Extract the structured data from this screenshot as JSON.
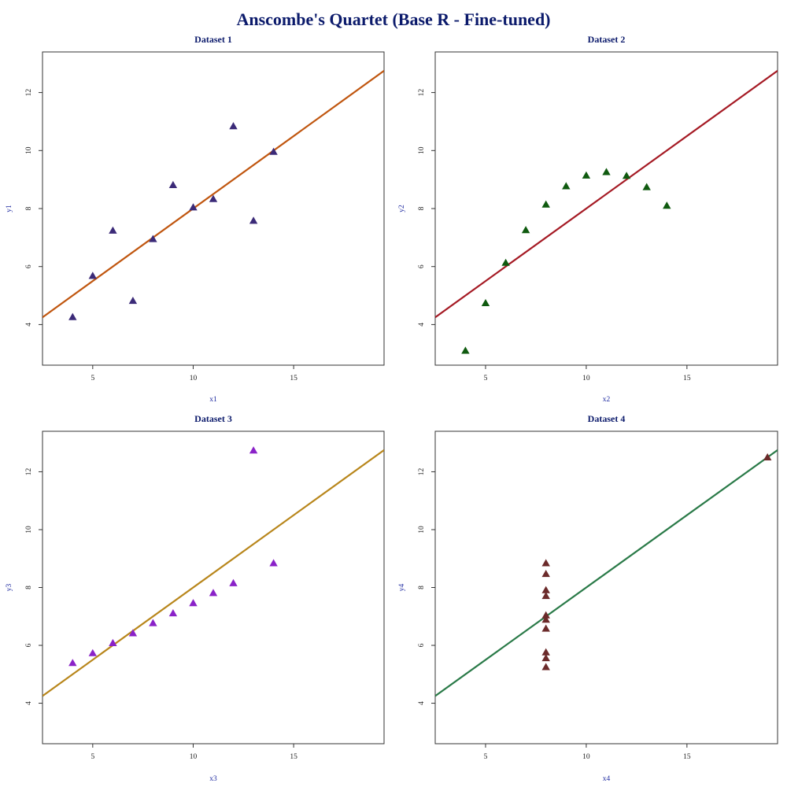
{
  "page": {
    "title": "Anscombe's Quartet (Base R - Fine-tuned)"
  },
  "chart_data": [
    {
      "type": "scatter",
      "title": "Dataset 1",
      "xlabel": "x1",
      "ylabel": "y1",
      "xlim": [
        2.5,
        19.5
      ],
      "ylim": [
        2.6,
        13.4
      ],
      "xticks": [
        "5",
        "10",
        "15"
      ],
      "yticks": [
        "4",
        "6",
        "8",
        "10",
        "12"
      ],
      "grid": false,
      "marker": "triangle",
      "point_color": "#3b2a78",
      "line_color": "#c0560f",
      "fit": {
        "intercept": 3.0,
        "slope": 0.5
      },
      "x": [
        10,
        8,
        13,
        9,
        11,
        14,
        6,
        4,
        12,
        7,
        5
      ],
      "y": [
        8.04,
        6.95,
        7.58,
        8.81,
        8.33,
        9.96,
        7.24,
        4.26,
        10.84,
        4.82,
        5.68
      ]
    },
    {
      "type": "scatter",
      "title": "Dataset 2",
      "xlabel": "x2",
      "ylabel": "y2",
      "xlim": [
        2.5,
        19.5
      ],
      "ylim": [
        2.6,
        13.4
      ],
      "xticks": [
        "5",
        "10",
        "15"
      ],
      "yticks": [
        "4",
        "6",
        "8",
        "10",
        "12"
      ],
      "grid": false,
      "marker": "triangle",
      "point_color": "#0f5a0f",
      "line_color": "#a51a24",
      "fit": {
        "intercept": 3.0,
        "slope": 0.5
      },
      "x": [
        10,
        8,
        13,
        9,
        11,
        14,
        6,
        4,
        12,
        7,
        5
      ],
      "y": [
        9.14,
        8.14,
        8.74,
        8.77,
        9.26,
        8.1,
        6.13,
        3.1,
        9.13,
        7.26,
        4.74
      ]
    },
    {
      "type": "scatter",
      "title": "Dataset 3",
      "xlabel": "x3",
      "ylabel": "y3",
      "xlim": [
        2.5,
        19.5
      ],
      "ylim": [
        2.6,
        13.4
      ],
      "xticks": [
        "5",
        "10",
        "15"
      ],
      "yticks": [
        "4",
        "6",
        "8",
        "10",
        "12"
      ],
      "grid": false,
      "marker": "triangle",
      "point_color": "#8a22c8",
      "line_color": "#b8861b",
      "fit": {
        "intercept": 3.0,
        "slope": 0.5
      },
      "x": [
        10,
        8,
        13,
        9,
        11,
        14,
        6,
        4,
        12,
        7,
        5
      ],
      "y": [
        7.46,
        6.77,
        12.74,
        7.11,
        7.81,
        8.84,
        6.08,
        5.39,
        8.15,
        6.42,
        5.73
      ]
    },
    {
      "type": "scatter",
      "title": "Dataset 4",
      "xlabel": "x4",
      "ylabel": "y4",
      "xlim": [
        2.5,
        19.5
      ],
      "ylim": [
        2.6,
        13.4
      ],
      "xticks": [
        "5",
        "10",
        "15"
      ],
      "yticks": [
        "4",
        "6",
        "8",
        "10",
        "12"
      ],
      "grid": false,
      "marker": "triangle",
      "point_color": "#6b2a2a",
      "line_color": "#2a7a48",
      "fit": {
        "intercept": 3.0,
        "slope": 0.5
      },
      "x": [
        8,
        8,
        8,
        8,
        8,
        8,
        8,
        19,
        8,
        8,
        8
      ],
      "y": [
        6.58,
        5.76,
        7.71,
        8.84,
        8.47,
        7.04,
        5.25,
        12.5,
        5.56,
        7.91,
        6.89
      ]
    }
  ]
}
